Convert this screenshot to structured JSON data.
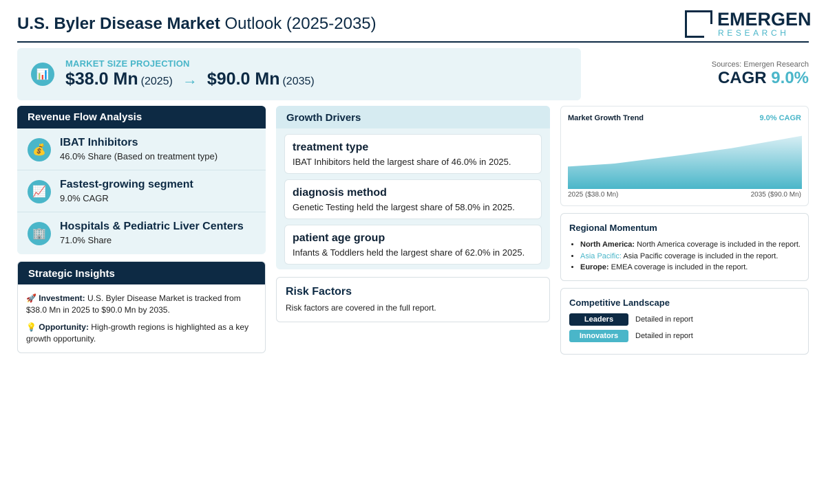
{
  "header": {
    "title_bold": "U.S. Byler Disease Market",
    "title_rest": "Outlook (2025-2035)",
    "logo_top": "EMERGEN",
    "logo_bottom": "RESEARCH"
  },
  "market_size": {
    "icon": "bar-chart-icon",
    "label": "MARKET SIZE PROJECTION",
    "start_value": "$38.0 Mn",
    "start_year": "(2025)",
    "arrow": "→",
    "end_value": "$90.0 Mn",
    "end_year": "(2035)"
  },
  "sources": "Sources: Emergen Research",
  "cagr": {
    "label": "CAGR",
    "value": "9.0%"
  },
  "revenue_flow": {
    "title": "Revenue Flow Analysis",
    "items": [
      {
        "icon": "money-bag-icon",
        "glyph": "💰",
        "title": "IBAT Inhibitors",
        "sub": "46.0% Share (Based on treatment type)"
      },
      {
        "icon": "trend-chart-icon",
        "glyph": "📈",
        "title": "Fastest-growing segment",
        "sub": "9.0% CAGR"
      },
      {
        "icon": "hospital-icon",
        "glyph": "🏢",
        "title": "Hospitals & Pediatric Liver Centers",
        "sub": "71.0% Share"
      }
    ]
  },
  "strategic": {
    "title": "Strategic Insights",
    "investment_icon": "🚀",
    "investment_label": "Investment:",
    "investment_text": "U.S. Byler Disease Market is tracked from $38.0 Mn in 2025 to $90.0 Mn by 2035.",
    "opportunity_icon": "💡",
    "opportunity_label": "Opportunity:",
    "opportunity_text": "High-growth regions is highlighted as a key growth opportunity."
  },
  "growth_drivers": {
    "title": "Growth Drivers",
    "items": [
      {
        "title": "treatment type",
        "text": "IBAT Inhibitors held the largest share of 46.0% in 2025."
      },
      {
        "title": "diagnosis method",
        "text": "Genetic Testing held the largest share of 58.0% in 2025."
      },
      {
        "title": "patient age group",
        "text": "Infants & Toddlers held the largest share of 62.0% in 2025."
      }
    ]
  },
  "risk": {
    "title": "Risk Factors",
    "text": "Risk factors are covered in the full report."
  },
  "trend": {
    "title": "Market Growth Trend",
    "cagr": "9.0% CAGR",
    "start_label": "2025 ($38.0 Mn)",
    "end_label": "2035 ($90.0 Mn)"
  },
  "chart_data": {
    "type": "area",
    "x": [
      2025,
      2027,
      2030,
      2032,
      2035
    ],
    "values": [
      38.0,
      43.0,
      58.0,
      69.0,
      90.0
    ],
    "title": "Market Growth Trend",
    "ylim": [
      0,
      100
    ],
    "grid": false,
    "colors": {
      "fill_top": "#d7eef4",
      "fill_bottom": "#4ab6c9"
    }
  },
  "regional": {
    "title": "Regional Momentum",
    "items": [
      {
        "name": "North America:",
        "text": "North America coverage is included in the report.",
        "accent": false
      },
      {
        "name": "Asia Pacific:",
        "text": "Asia Pacific coverage is included in the report.",
        "accent": true
      },
      {
        "name": "Europe:",
        "text": "EMEA coverage is included in the report.",
        "accent": false
      }
    ]
  },
  "competitive": {
    "title": "Competitive Landscape",
    "rows": [
      {
        "badge": "Leaders",
        "text": "Detailed in report",
        "color": "#0d2a44"
      },
      {
        "badge": "Innovators",
        "text": "Detailed in report",
        "color": "#4ab6c9"
      }
    ]
  },
  "colors": {
    "navy": "#0d2a44",
    "accent": "#4ab6c9",
    "panel": "#e9f4f7"
  }
}
